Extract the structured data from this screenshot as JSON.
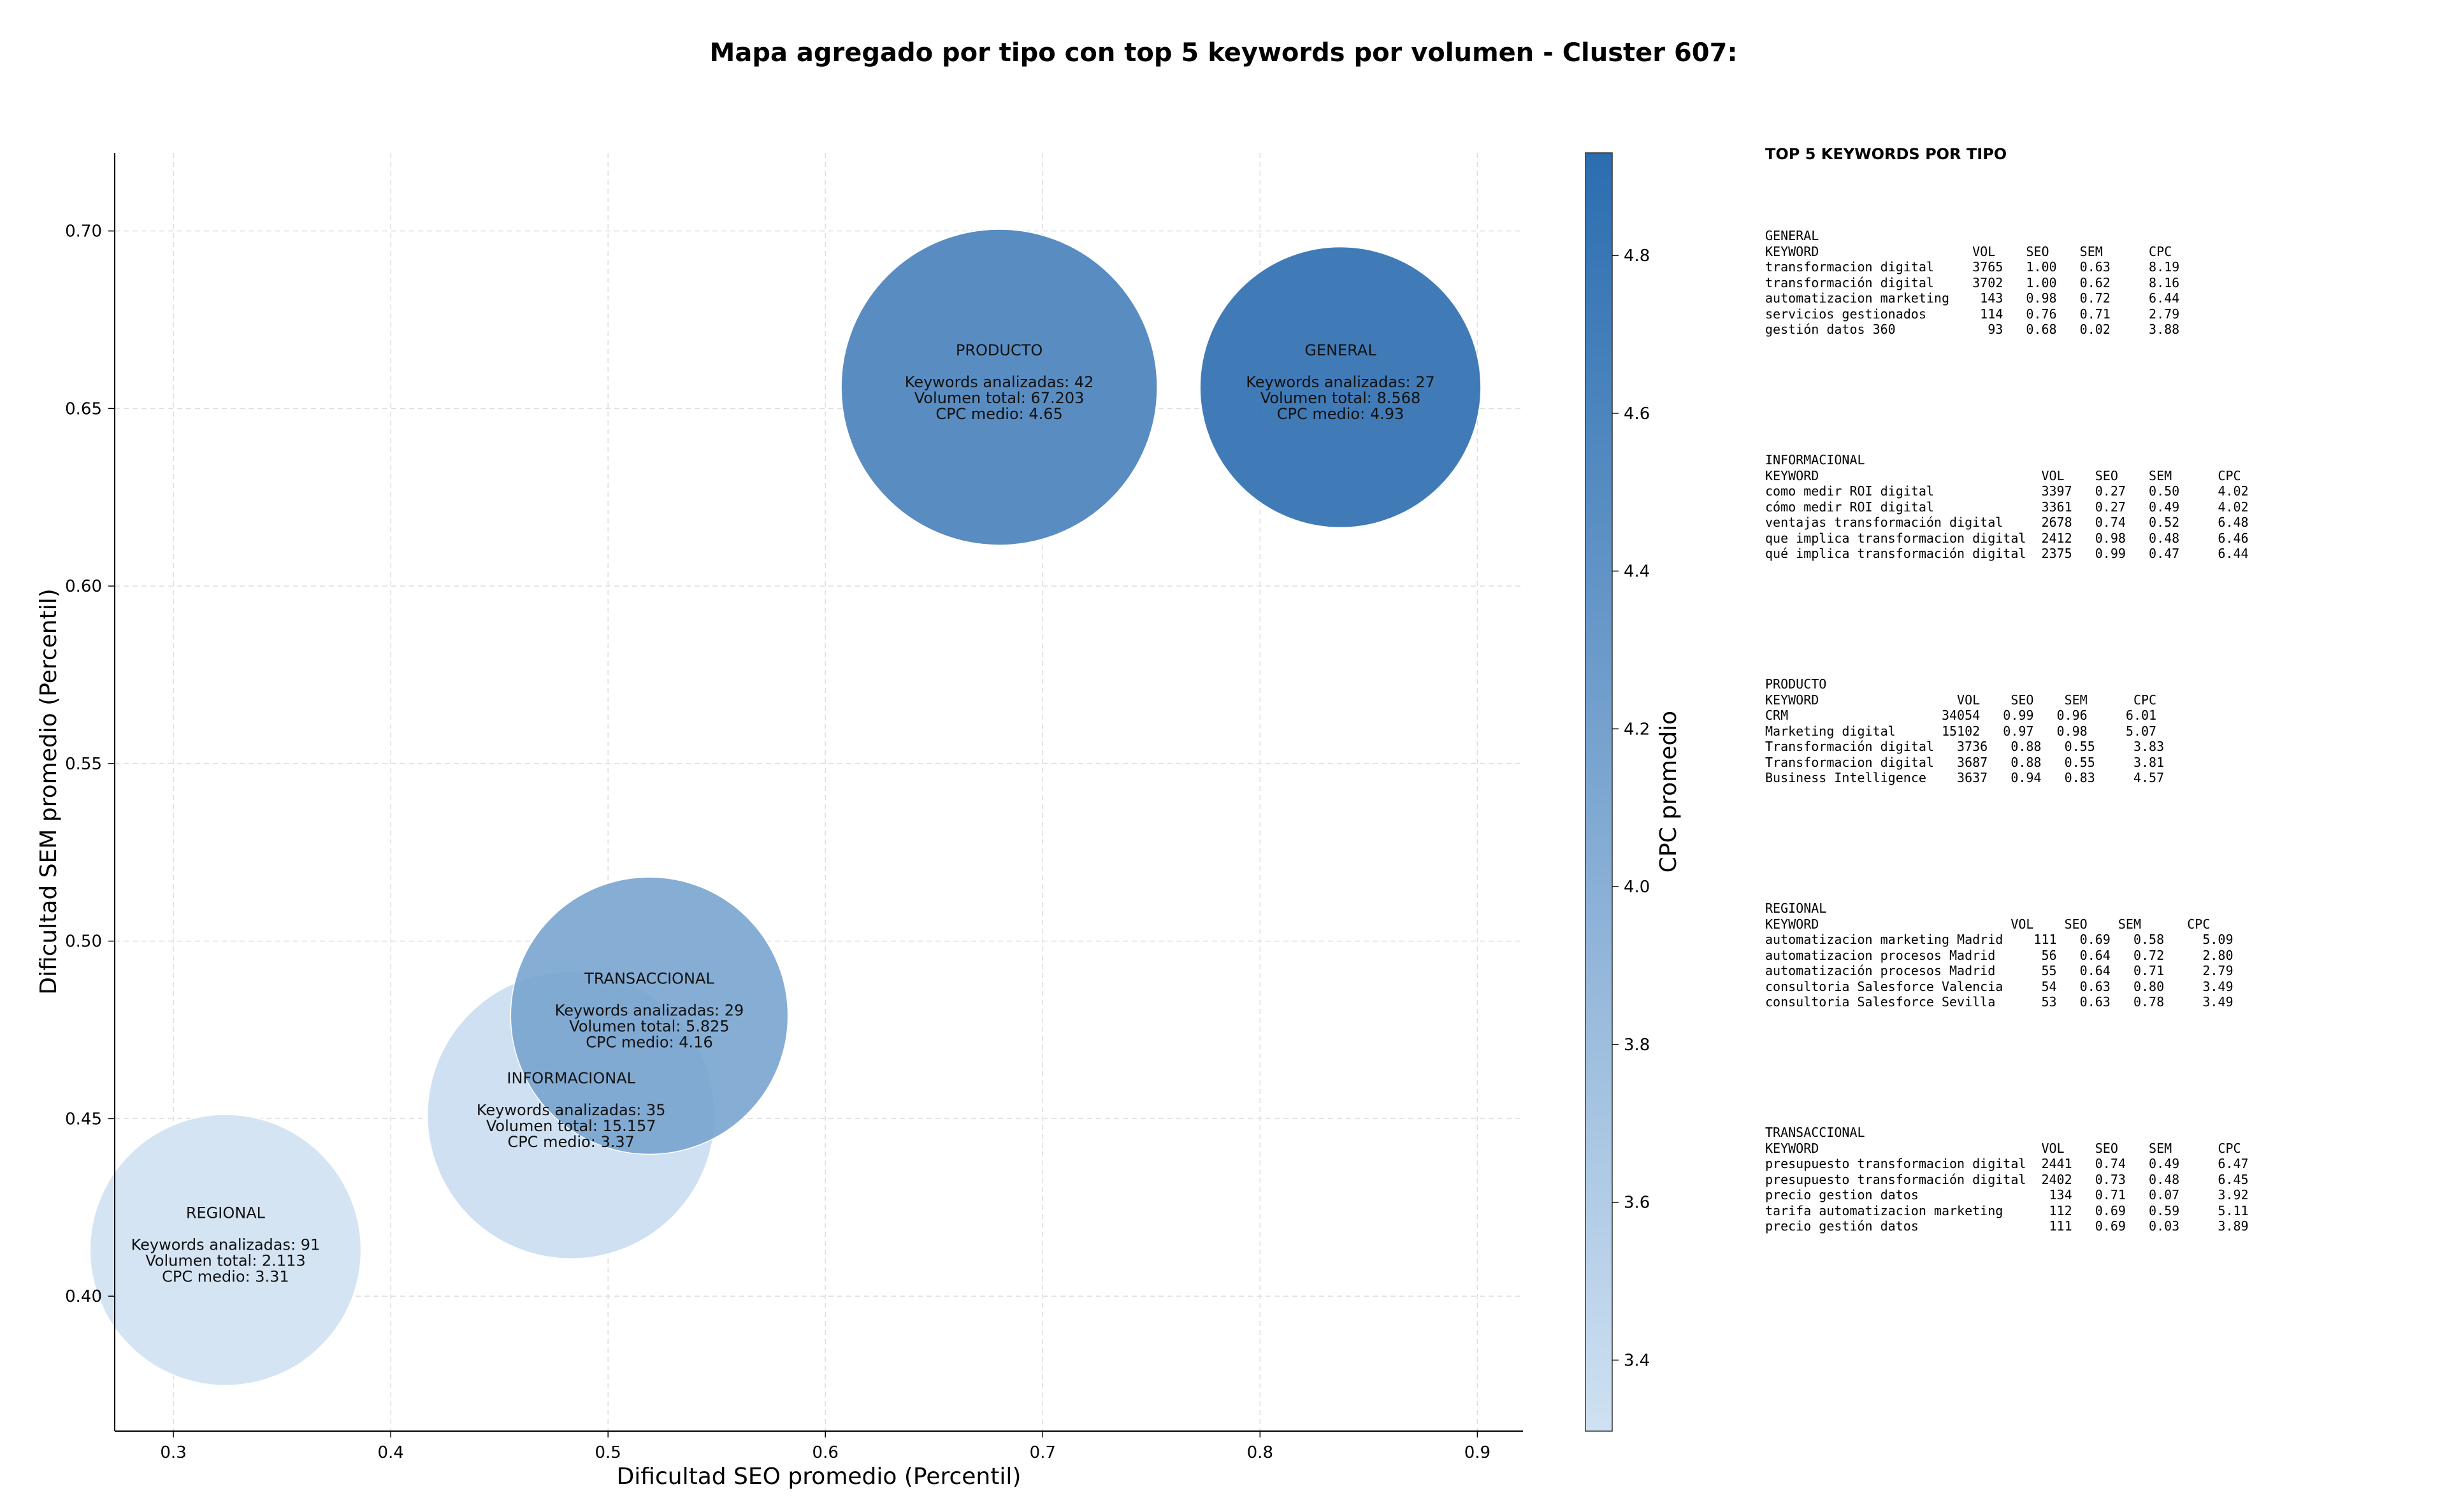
{
  "chart_data": {
    "type": "scatter",
    "title": "Mapa agregado por tipo con top 5 keywords por volumen - Cluster 607:",
    "xlabel": "Dificultad SEO promedio (Percentil)",
    "ylabel": "Dificultad SEM promedio (Percentil)",
    "xlim": [
      0.273,
      0.921
    ],
    "ylim": [
      0.362,
      0.722
    ],
    "xticks": [
      "0.3",
      "0.4",
      "0.5",
      "0.6",
      "0.7",
      "0.8",
      "0.9"
    ],
    "yticks": [
      "0.40",
      "0.45",
      "0.50",
      "0.55",
      "0.60",
      "0.65",
      "0.70"
    ],
    "grid": true,
    "colorbar": {
      "label": "CPC promedio",
      "range": [
        3.31,
        4.93
      ],
      "ticks": [
        "3.4",
        "3.6",
        "3.8",
        "4.0",
        "4.2",
        "4.4",
        "4.6",
        "4.8"
      ],
      "color_low": "#cfe1f2",
      "color_high": "#2b6db0"
    },
    "points": [
      {
        "tipo": "REGIONAL",
        "x": 0.324,
        "y": 0.413,
        "keywords_line": "Keywords analizadas: 91",
        "volumen_line": "Volumen total: 2.113",
        "cpc_line": "CPC medio: 3.31",
        "cpc": 3.31,
        "volumen": 2113
      },
      {
        "tipo": "INFORMACIONAL",
        "x": 0.483,
        "y": 0.451,
        "keywords_line": "Keywords analizadas: 35",
        "volumen_line": "Volumen total: 15.157",
        "cpc_line": "CPC medio: 3.37",
        "cpc": 3.37,
        "volumen": 15157
      },
      {
        "tipo": "TRANSACCIONAL",
        "x": 0.519,
        "y": 0.479,
        "keywords_line": "Keywords analizadas: 29",
        "volumen_line": "Volumen total: 5.825",
        "cpc_line": "CPC medio: 4.16",
        "cpc": 4.16,
        "volumen": 5825
      },
      {
        "tipo": "PRODUCTO",
        "x": 0.68,
        "y": 0.656,
        "keywords_line": "Keywords analizadas: 42",
        "volumen_line": "Volumen total: 67.203",
        "cpc_line": "CPC medio: 4.65",
        "cpc": 4.65,
        "volumen": 67203
      },
      {
        "tipo": "GENERAL",
        "x": 0.837,
        "y": 0.656,
        "keywords_line": "Keywords analizadas: 27",
        "volumen_line": "Volumen total: 8.568",
        "cpc_line": "CPC medio: 4.93",
        "cpc": 4.93,
        "volumen": 8568
      }
    ]
  },
  "keywords_panel": {
    "title": "TOP 5 KEYWORDS POR TIPO",
    "blocks": [
      {
        "name": "GENERAL",
        "lines": [
          "GENERAL",
          "KEYWORD                    VOL    SEO    SEM      CPC",
          "transformacion digital     3765   1.00   0.63     8.19",
          "transformación digital     3702   1.00   0.62     8.16",
          "automatizacion marketing    143   0.98   0.72     6.44",
          "servicios gestionados       114   0.76   0.71     2.79",
          "gestión datos 360            93   0.68   0.02     3.88"
        ]
      },
      {
        "name": "INFORMACIONAL",
        "lines": [
          "INFORMACIONAL",
          "KEYWORD                             VOL    SEO    SEM      CPC",
          "como medir ROI digital              3397   0.27   0.50     4.02",
          "cómo medir ROI digital              3361   0.27   0.49     4.02",
          "ventajas transformación digital     2678   0.74   0.52     6.48",
          "que implica transformacion digital  2412   0.98   0.48     6.46",
          "qué implica transformación digital  2375   0.99   0.47     6.44"
        ]
      },
      {
        "name": "PRODUCTO",
        "lines": [
          "PRODUCTO",
          "KEYWORD                  VOL    SEO    SEM      CPC",
          "CRM                    34054   0.99   0.96     6.01",
          "Marketing digital      15102   0.97   0.98     5.07",
          "Transformación digital   3736   0.88   0.55     3.83",
          "Transformacion digital   3687   0.88   0.55     3.81",
          "Business Intelligence    3637   0.94   0.83     4.57"
        ]
      },
      {
        "name": "REGIONAL",
        "lines": [
          "REGIONAL",
          "KEYWORD                         VOL    SEO    SEM      CPC",
          "automatizacion marketing Madrid    111   0.69   0.58     5.09",
          "automatizacion procesos Madrid      56   0.64   0.72     2.80",
          "automatización procesos Madrid      55   0.64   0.71     2.79",
          "consultoria Salesforce Valencia     54   0.63   0.80     3.49",
          "consultoria Salesforce Sevilla      53   0.63   0.78     3.49"
        ]
      },
      {
        "name": "TRANSACCIONAL",
        "lines": [
          "TRANSACCIONAL",
          "KEYWORD                             VOL    SEO    SEM      CPC",
          "presupuesto transformacion digital  2441   0.74   0.49     6.47",
          "presupuesto transformación digital  2402   0.73   0.48     6.45",
          "precio gestion datos                 134   0.71   0.07     3.92",
          "tarifa automatizacion marketing      112   0.69   0.59     5.11",
          "precio gestión datos                 111   0.69   0.03     3.89"
        ]
      }
    ]
  }
}
